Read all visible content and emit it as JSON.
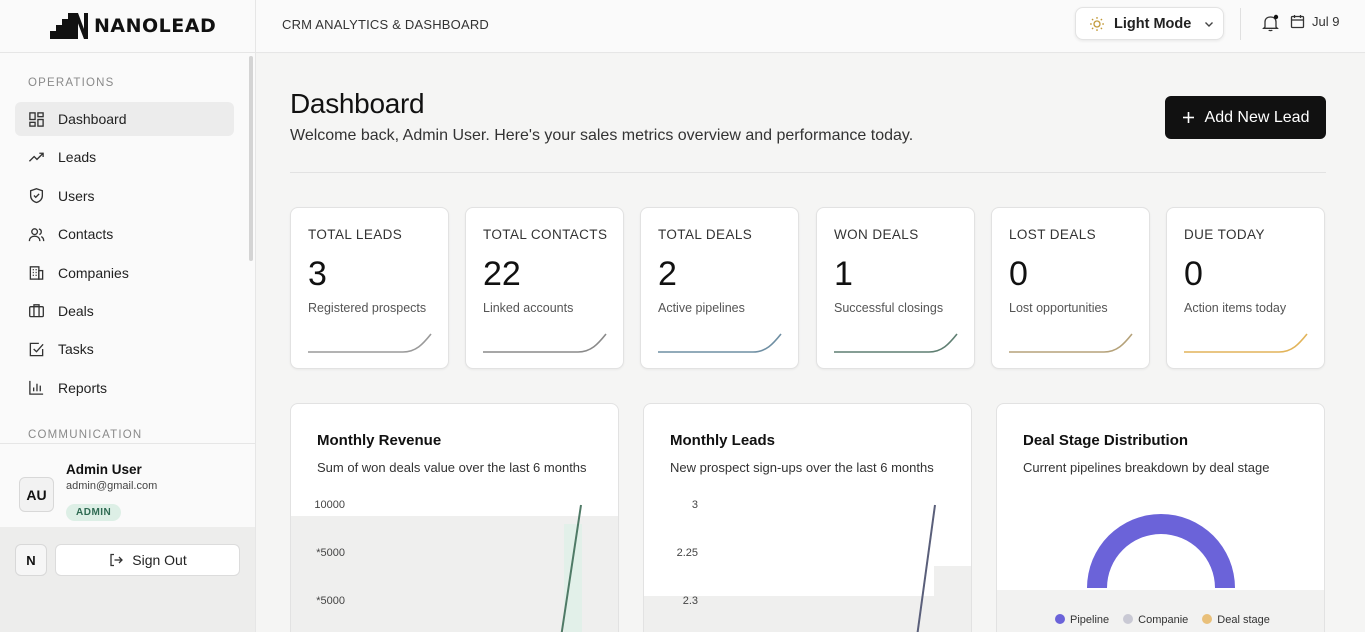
{
  "brand": {
    "name": "NANOLEAD"
  },
  "header": {
    "title": "CRM ANALYTICS & DASHBOARD",
    "theme_label": "Light Mode",
    "date": "Jul 9"
  },
  "sidebar": {
    "section_operations": "OPERATIONS",
    "section_communication": "COMMUNICATION",
    "items": [
      {
        "label": "Dashboard",
        "icon": "dashboard-icon",
        "active": true
      },
      {
        "label": "Leads",
        "icon": "trend-icon"
      },
      {
        "label": "Users",
        "icon": "shield-icon"
      },
      {
        "label": "Contacts",
        "icon": "users-icon"
      },
      {
        "label": "Companies",
        "icon": "building-icon"
      },
      {
        "label": "Deals",
        "icon": "briefcase-icon"
      },
      {
        "label": "Tasks",
        "icon": "checkbox-icon"
      },
      {
        "label": "Reports",
        "icon": "bar-chart-icon"
      }
    ],
    "user": {
      "initials": "AU",
      "name": "Admin User",
      "email": "admin@gmail.com",
      "role": "ADMIN"
    },
    "bottom": {
      "n_label": "N",
      "signout_label": "Sign Out"
    }
  },
  "page": {
    "title": "Dashboard",
    "subtitle": "Welcome back, Admin User. Here's your sales metrics overview and performance today.",
    "add_button": "Add New Lead"
  },
  "stats": [
    {
      "label": "TOTAL LEADS",
      "value": "3",
      "desc": "Registered prospects",
      "color": "#9a9a9a"
    },
    {
      "label": "TOTAL CONTACTS",
      "value": "22",
      "desc": "Linked accounts",
      "color": "#8a8a8a"
    },
    {
      "label": "TOTAL DEALS",
      "value": "2",
      "desc": "Active pipelines",
      "color": "#6f8fa3"
    },
    {
      "label": "WON DEALS",
      "value": "1",
      "desc": "Successful closings",
      "color": "#5f7f72"
    },
    {
      "label": "LOST DEALS",
      "value": "0",
      "desc": "Lost opportunities",
      "color": "#b5a27a"
    },
    {
      "label": "DUE TODAY",
      "value": "0",
      "desc": "Action items today",
      "color": "#e2b45a"
    }
  ],
  "chart_data": [
    {
      "type": "line",
      "title": "Monthly Revenue",
      "subtitle": "Sum of won deals value over the last 6 months",
      "y_ticks": [
        "10000",
        "*5000",
        "*5000"
      ],
      "color": "#4f7a66"
    },
    {
      "type": "line",
      "title": "Monthly Leads",
      "subtitle": "New prospect sign-ups over the last 6 months",
      "y_ticks": [
        "3",
        "2.25",
        "2.3"
      ],
      "color": "#5a5f7a"
    },
    {
      "type": "pie",
      "title": "Deal Stage Distribution",
      "subtitle": "Current pipelines breakdown by deal stage",
      "legend": [
        {
          "name": "Pipeline",
          "color": "#6b63d9"
        },
        {
          "name": "Companie",
          "color": "#c9c9d4"
        },
        {
          "name": "Deal stage",
          "color": "#e9c07a"
        }
      ]
    }
  ]
}
